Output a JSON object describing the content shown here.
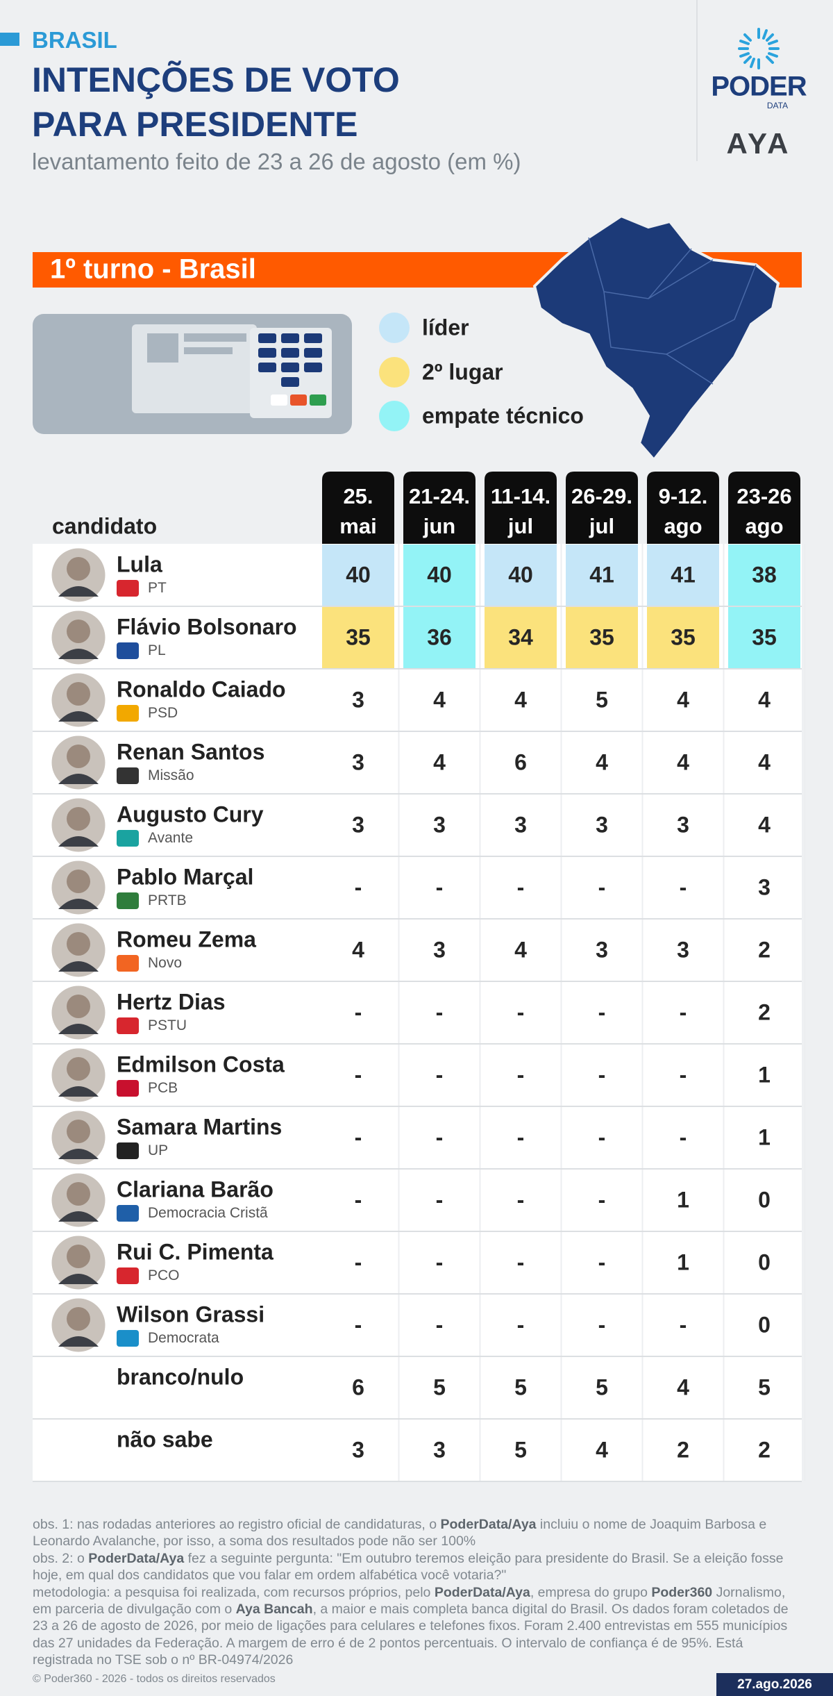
{
  "header": {
    "region": "BRASIL",
    "title_lines": [
      "INTENÇÕES DE VOTO",
      "PARA PRESIDENTE"
    ],
    "subtitle": "levantamento feito de 23 a 26 de agosto (em %)"
  },
  "brand": {
    "name": "PODER",
    "sub": "DATA",
    "partner": "AYA"
  },
  "section": "1º turno - Brasil",
  "legend": [
    {
      "label": "líder",
      "color": "#c5e6f8"
    },
    {
      "label": "2º lugar",
      "color": "#fbe27c"
    },
    {
      "label": "empate técnico",
      "color": "#93f3f6"
    }
  ],
  "table": {
    "column_header": "candidato",
    "columns": [
      {
        "top": "25.",
        "bottom": "mai"
      },
      {
        "top": "21-24.",
        "bottom": "jun"
      },
      {
        "top": "11-14.",
        "bottom": "jul"
      },
      {
        "top": "26-29.",
        "bottom": "jul"
      },
      {
        "top": "9-12.",
        "bottom": "ago"
      },
      {
        "top": "23-26",
        "bottom": "ago"
      }
    ],
    "rows": [
      {
        "name": "Lula",
        "party": "PT",
        "party_color": "#d7262e",
        "cells": [
          40,
          40,
          40,
          41,
          41,
          38
        ],
        "colors": [
          "#c5e6f8",
          "#93f3f6",
          "#c5e6f8",
          "#c5e6f8",
          "#c5e6f8",
          "#93f3f6"
        ]
      },
      {
        "name": "Flávio Bolsonaro",
        "party": "PL",
        "party_color": "#1f4e9c",
        "cells": [
          35,
          36,
          34,
          35,
          35,
          35
        ],
        "colors": [
          "#fbe27c",
          "#93f3f6",
          "#fbe27c",
          "#fbe27c",
          "#fbe27c",
          "#93f3f6"
        ]
      },
      {
        "name": "Ronaldo Caiado",
        "party": "PSD",
        "party_color": "#f2a800",
        "cells": [
          3,
          4,
          4,
          5,
          4,
          4
        ]
      },
      {
        "name": "Renan Santos",
        "party": "Missão",
        "party_color": "#333333",
        "cells": [
          3,
          4,
          6,
          4,
          4,
          4
        ]
      },
      {
        "name": "Augusto Cury",
        "party": "Avante",
        "party_color": "#1aa3a0",
        "cells": [
          3,
          3,
          3,
          3,
          3,
          4
        ]
      },
      {
        "name": "Pablo Marçal",
        "party": "PRTB",
        "party_color": "#2f7d3c",
        "cells": [
          "-",
          "-",
          "-",
          "-",
          "-",
          3
        ]
      },
      {
        "name": "Romeu Zema",
        "party": "Novo",
        "party_color": "#f26522",
        "cells": [
          4,
          3,
          4,
          3,
          3,
          2
        ]
      },
      {
        "name": "Hertz Dias",
        "party": "PSTU",
        "party_color": "#d7262e",
        "cells": [
          "-",
          "-",
          "-",
          "-",
          "-",
          2
        ]
      },
      {
        "name": "Edmilson Costa",
        "party": "PCB",
        "party_color": "#c8102e",
        "cells": [
          "-",
          "-",
          "-",
          "-",
          "-",
          1
        ]
      },
      {
        "name": "Samara Martins",
        "party": "UP",
        "party_color": "#222222",
        "cells": [
          "-",
          "-",
          "-",
          "-",
          "-",
          1
        ]
      },
      {
        "name": "Clariana Barão",
        "party": "Democracia Cristã",
        "party_color": "#1f5fa8",
        "cells": [
          "-",
          "-",
          "-",
          "-",
          1,
          0
        ]
      },
      {
        "name": "Rui C. Pimenta",
        "party": "PCO",
        "party_color": "#d7262e",
        "cells": [
          "-",
          "-",
          "-",
          "-",
          1,
          0
        ]
      },
      {
        "name": "Wilson Grassi",
        "party": "Democrata",
        "party_color": "#1a8fc9",
        "cells": [
          "-",
          "-",
          "-",
          "-",
          "-",
          0
        ]
      },
      {
        "name": "branco/nulo",
        "cells": [
          6,
          5,
          5,
          5,
          4,
          5
        ]
      },
      {
        "name": "não sabe",
        "cells": [
          3,
          3,
          5,
          4,
          2,
          2
        ]
      }
    ]
  },
  "notes": [
    [
      "obs. 1: nas rodadas anteriores ao registro oficial de candidaturas, o ",
      "PoderData/Aya",
      " incluiu o nome de Joaquim Barbosa e Leonardo Avalanche, por isso, a soma dos resultados pode não ser 100%"
    ],
    [
      "obs. 2: o ",
      "PoderData/Aya",
      " fez a seguinte pergunta: \"Em outubro teremos eleição para presidente do Brasil. Se a eleição fosse hoje, em qual dos candidatos que vou falar em ordem alfabética você votaria?\""
    ],
    [
      "metodologia: a pesquisa foi realizada, com recursos próprios, pelo ",
      "PoderData/Aya",
      ", empresa do grupo ",
      "Poder360",
      " Jornalismo, em parceria de divulgação com o ",
      "Aya Bancah",
      ", a maior e mais completa banca digital do Brasil. Os dados foram coletados de 23 a 26 de agosto de 2026, por meio de ligações para celulares e telefones fixos. Foram 2.400 entrevistas em 555 municípios das 27 unidades da Federação. A margem de erro é de 2 pontos percentuais. O intervalo de confiança é de 95%. Está registrada no TSE sob o nº BR-04974/2026"
    ]
  ],
  "footer": {
    "copyright": "© Poder360 - 2026 - todos os direitos reservados",
    "date": "27.ago.2026"
  }
}
